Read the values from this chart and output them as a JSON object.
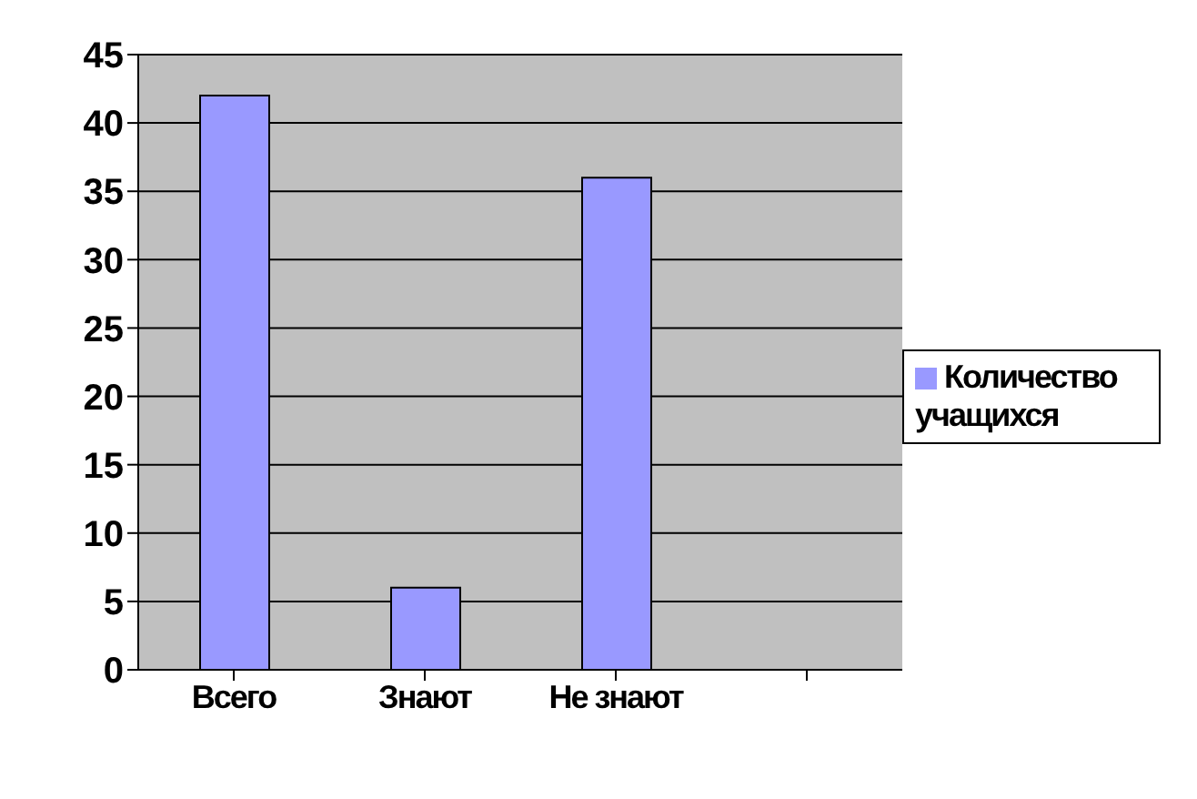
{
  "chart_data": {
    "type": "bar",
    "categories": [
      "Всего",
      "Знают",
      "Не знают",
      null
    ],
    "series": [
      {
        "name": "Количество учащихся",
        "color": "#9999ff",
        "values": [
          42,
          6,
          36,
          null
        ]
      }
    ],
    "ylim": [
      0,
      45
    ],
    "yticks": [
      0,
      5,
      10,
      15,
      20,
      25,
      30,
      35,
      40,
      45
    ],
    "grid": "y",
    "legend": "right"
  }
}
